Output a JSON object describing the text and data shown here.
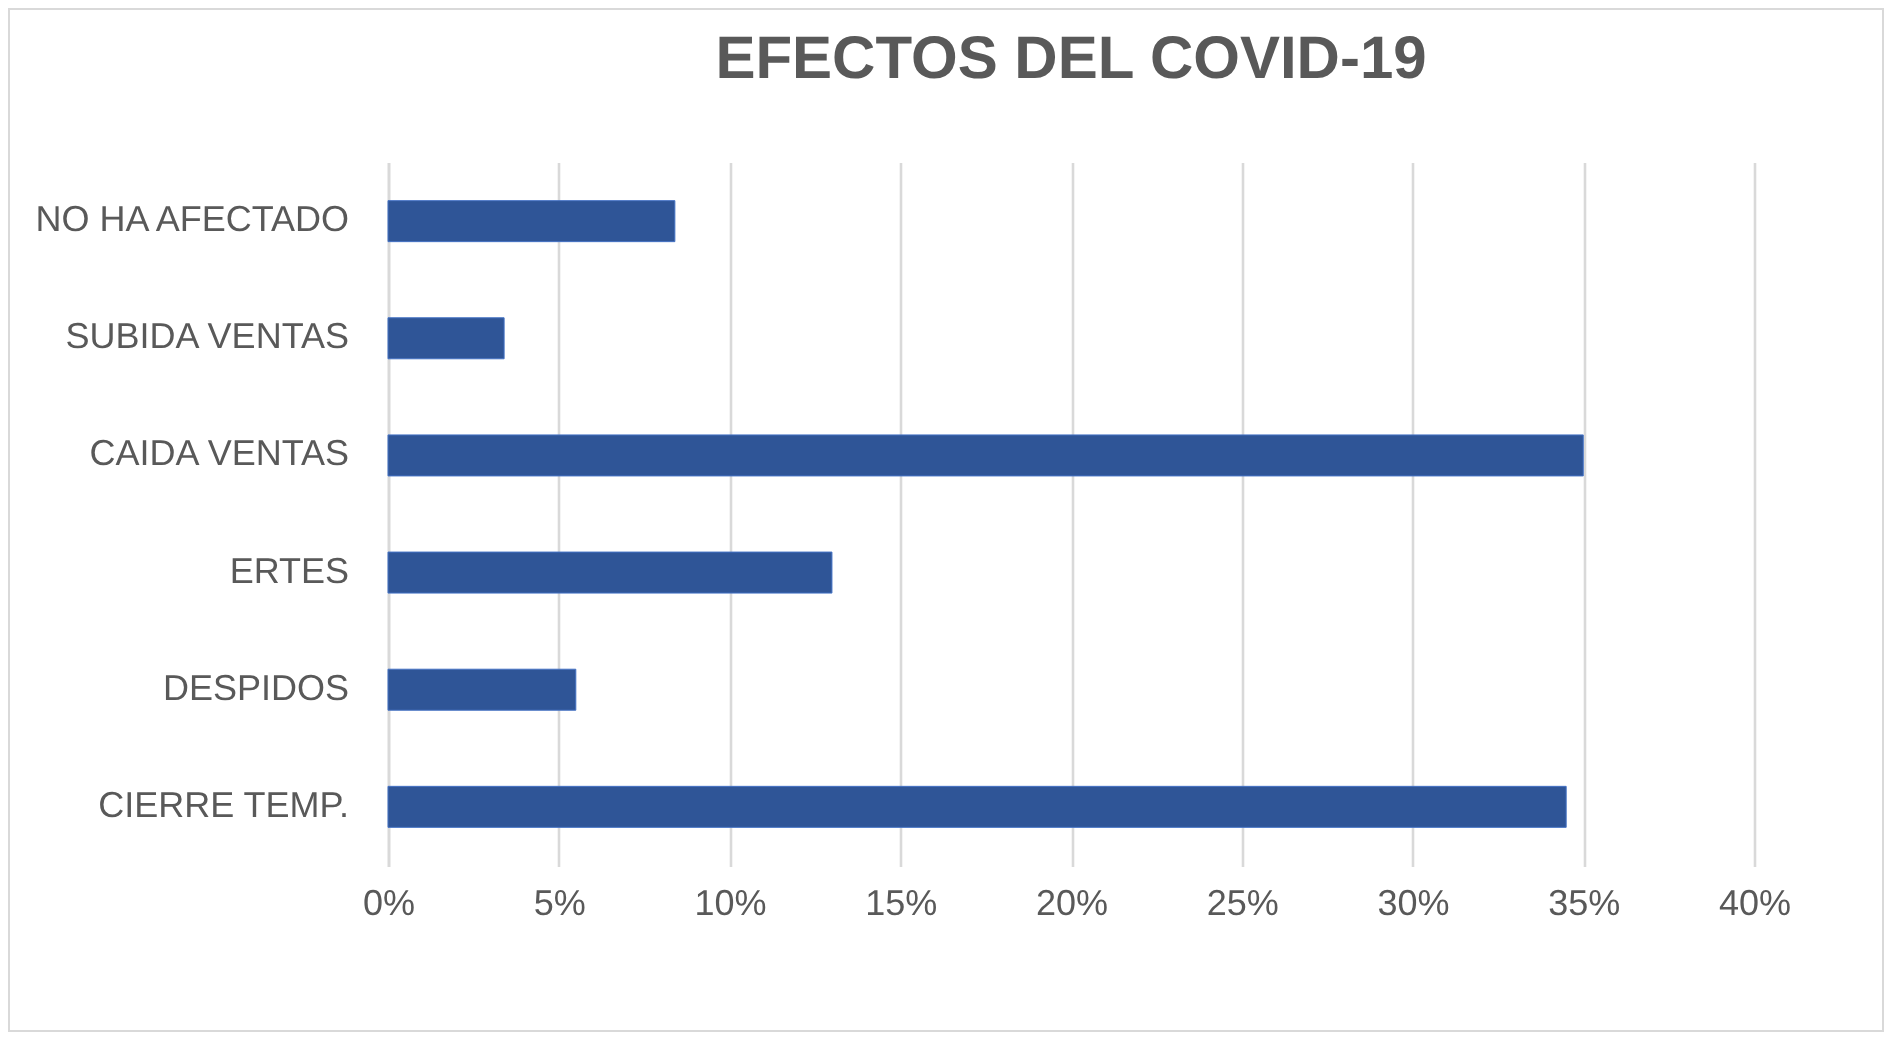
{
  "chart_data": {
    "type": "bar",
    "orientation": "horizontal",
    "title": "EFECTOS DEL COVID-19",
    "categories": [
      "NO HA AFECTADO",
      "SUBIDA VENTAS",
      "CAIDA VENTAS",
      "ERTES",
      "DESPIDOS",
      "CIERRE TEMP."
    ],
    "values": [
      8.4,
      3.4,
      35.0,
      13.0,
      5.5,
      34.5
    ],
    "color": "#2f5597",
    "xlim": [
      0,
      40
    ],
    "xticks": [
      {
        "value": 0,
        "label": "0%"
      },
      {
        "value": 5,
        "label": "5%"
      },
      {
        "value": 10,
        "label": "10%"
      },
      {
        "value": 15,
        "label": "15%"
      },
      {
        "value": 20,
        "label": "20%"
      },
      {
        "value": 25,
        "label": "25%"
      },
      {
        "value": 30,
        "label": "30%"
      },
      {
        "value": 35,
        "label": "35%"
      },
      {
        "value": 40,
        "label": "40%"
      }
    ],
    "grid": "x"
  }
}
